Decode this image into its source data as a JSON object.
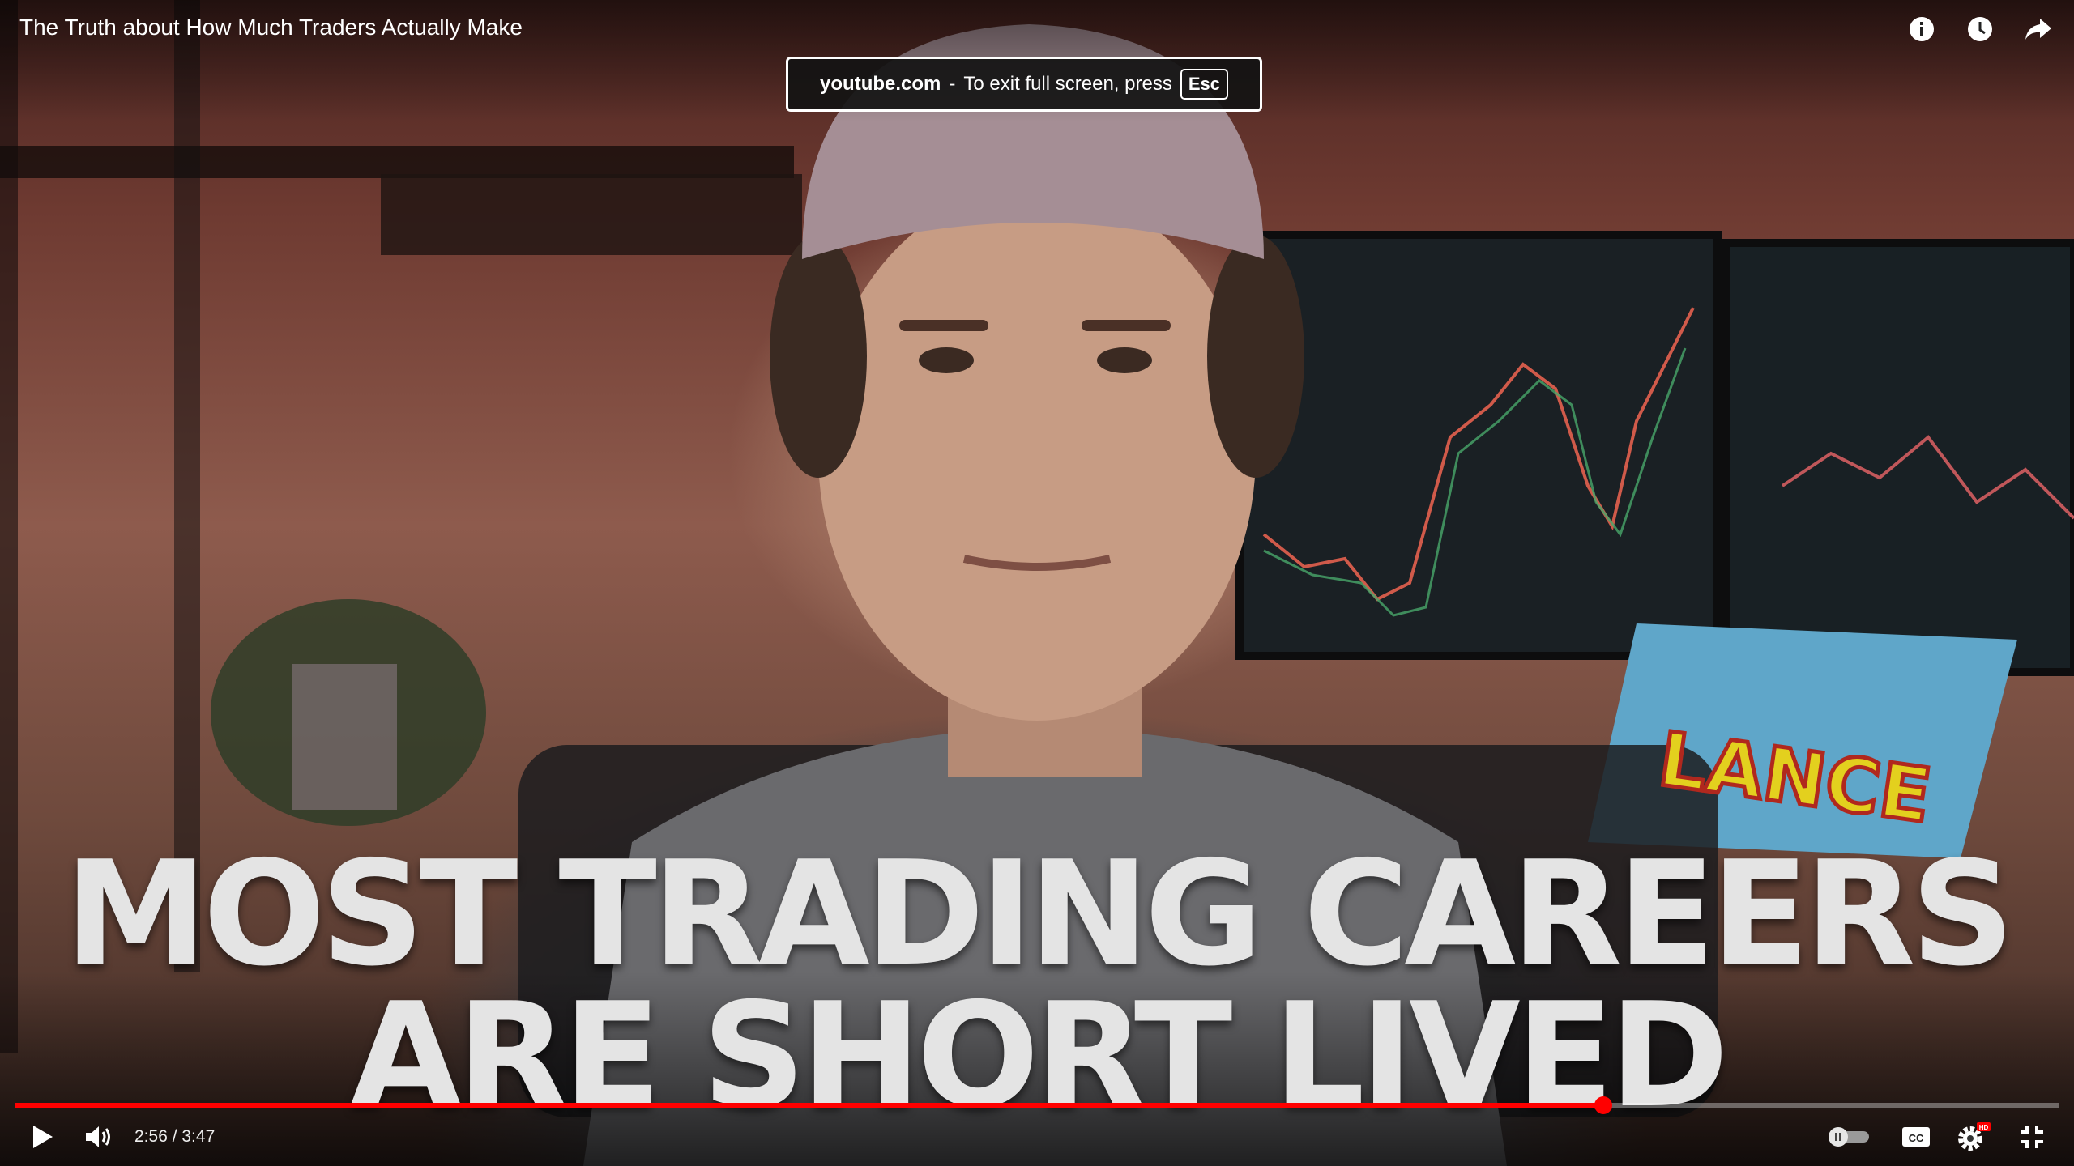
{
  "video": {
    "title": "The Truth about How Much Traders Actually Make",
    "caption_line1": "MOST TRADING CAREERS",
    "caption_line2": "ARE SHORT LIVED",
    "screen_logo_text": "LANCE"
  },
  "fullscreen_toast": {
    "domain": "youtube.com",
    "separator": "-",
    "message": "To exit full screen, press",
    "key": "Esc"
  },
  "player": {
    "current_time": "2:56",
    "duration": "3:47",
    "time_display": "2:56 / 3:47",
    "progress_fraction": 0.777,
    "accent_color": "#ff0000",
    "hd_badge": "HD",
    "icons": [
      "info-icon",
      "watch-later-icon",
      "share-icon",
      "play-icon",
      "volume-icon",
      "autoplay-toggle-icon",
      "captions-icon",
      "settings-icon",
      "exit-fullscreen-icon"
    ]
  }
}
